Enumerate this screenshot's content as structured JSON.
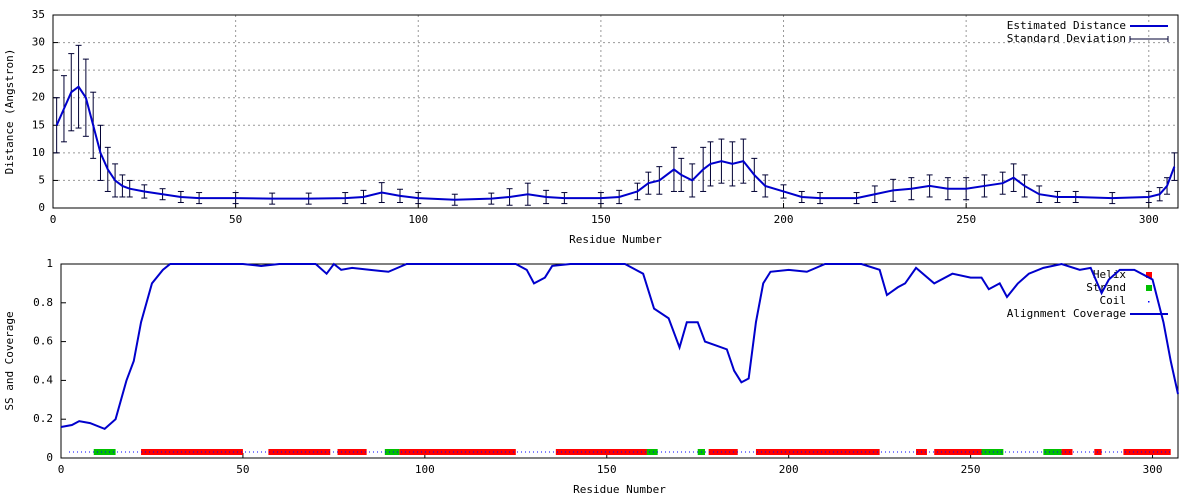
{
  "chart_data": [
    {
      "type": "line",
      "xlabel": "Residue Number",
      "ylabel": "Distance (Angstron)",
      "xlim": [
        0,
        308
      ],
      "ylim": [
        0,
        35
      ],
      "xticks": [
        0,
        50,
        100,
        150,
        200,
        250,
        300
      ],
      "yticks": [
        0,
        5,
        10,
        15,
        20,
        25,
        30,
        35
      ],
      "grid": true,
      "legend": "upper-right",
      "x": [
        1,
        3,
        5,
        7,
        9,
        11,
        13,
        15,
        17,
        19,
        21,
        25,
        30,
        35,
        40,
        50,
        60,
        70,
        80,
        85,
        90,
        95,
        100,
        110,
        120,
        125,
        130,
        135,
        140,
        150,
        155,
        160,
        163,
        166,
        170,
        172,
        175,
        178,
        180,
        183,
        186,
        189,
        192,
        195,
        200,
        205,
        210,
        220,
        225,
        230,
        235,
        240,
        245,
        250,
        255,
        260,
        263,
        266,
        270,
        275,
        280,
        290,
        300,
        303,
        305,
        307
      ],
      "series": [
        {
          "name": "Estimated Distance",
          "color": "#0000cc",
          "error_name": "Standard Deviation",
          "error_color": "#000033",
          "values": [
            15,
            18,
            21,
            22,
            20,
            15,
            10,
            7,
            5,
            4,
            3.5,
            3,
            2.5,
            2,
            1.8,
            1.8,
            1.7,
            1.7,
            1.8,
            2,
            2.8,
            2.2,
            1.8,
            1.5,
            1.7,
            2,
            2.5,
            2,
            1.8,
            1.8,
            2,
            3,
            4.5,
            5,
            7,
            6,
            5,
            7,
            8,
            8.5,
            8,
            8.5,
            6,
            4,
            3,
            2,
            1.8,
            1.8,
            2.5,
            3.2,
            3.5,
            4,
            3.5,
            3.5,
            4,
            4.5,
            5.5,
            4,
            2.5,
            2,
            2,
            1.8,
            2,
            2.5,
            4,
            7.5
          ],
          "errors": [
            5,
            6,
            7,
            7.5,
            7,
            6,
            5,
            4,
            3,
            2,
            1.5,
            1.2,
            1,
            1,
            1,
            1,
            1,
            1,
            1,
            1.2,
            1.8,
            1.2,
            1,
            1,
            1,
            1.5,
            2,
            1.2,
            1,
            1,
            1.2,
            1.5,
            2,
            2.5,
            4,
            3,
            3,
            4,
            4,
            4,
            4,
            4,
            3,
            2,
            1.2,
            1,
            1,
            1,
            1.5,
            2,
            2,
            2,
            2,
            2,
            2,
            2,
            2.5,
            2,
            1.5,
            1,
            1,
            1,
            1,
            1.2,
            1.5,
            2.5
          ]
        }
      ]
    },
    {
      "type": "line",
      "xlabel": "Residue Number",
      "ylabel": "SS and Coverage",
      "xlim": [
        0,
        307
      ],
      "ylim": [
        0,
        1
      ],
      "xticks": [
        0,
        50,
        100,
        150,
        200,
        250,
        300
      ],
      "yticks": [
        0,
        0.2,
        0.4,
        0.6,
        0.8,
        1
      ],
      "grid": false,
      "legend": "upper-right",
      "x": [
        0,
        3,
        5,
        8,
        12,
        15,
        18,
        20,
        22,
        25,
        28,
        30,
        40,
        50,
        55,
        60,
        70,
        73,
        75,
        77,
        80,
        85,
        90,
        95,
        100,
        125,
        128,
        130,
        133,
        135,
        140,
        155,
        160,
        163,
        167,
        170,
        172,
        175,
        177,
        180,
        183,
        185,
        187,
        189,
        191,
        193,
        195,
        200,
        205,
        210,
        220,
        225,
        227,
        230,
        232,
        235,
        240,
        245,
        250,
        253,
        255,
        258,
        260,
        263,
        266,
        270,
        275,
        280,
        283,
        286,
        288,
        291,
        295,
        300,
        303,
        305,
        307
      ],
      "series": [
        {
          "name": "Helix",
          "color": "#ff0000",
          "segments": [
            [
              22,
              50
            ],
            [
              57,
              74
            ],
            [
              76,
              84
            ],
            [
              93,
              125
            ],
            [
              136,
              162
            ],
            [
              178,
              186
            ],
            [
              191,
              225
            ],
            [
              235,
              238
            ],
            [
              240,
              256
            ],
            [
              275,
              278
            ],
            [
              284,
              286
            ],
            [
              292,
              305
            ]
          ]
        },
        {
          "name": "Strand",
          "color": "#00c000",
          "segments": [
            [
              9,
              15
            ],
            [
              89,
              93
            ],
            [
              161,
              164
            ],
            [
              175,
              177
            ],
            [
              253,
              259
            ],
            [
              270,
              275
            ]
          ]
        },
        {
          "name": "Coil",
          "color": "#0000ff"
        },
        {
          "name": "Alignment Coverage",
          "color": "#0000cc",
          "values": [
            0.16,
            0.17,
            0.19,
            0.18,
            0.15,
            0.2,
            0.4,
            0.5,
            0.7,
            0.9,
            0.97,
            1,
            1,
            1,
            0.99,
            1,
            1,
            0.95,
            1,
            0.97,
            0.98,
            0.97,
            0.96,
            1,
            1,
            1,
            0.97,
            0.9,
            0.93,
            0.99,
            1,
            1,
            0.95,
            0.77,
            0.72,
            0.57,
            0.7,
            0.7,
            0.6,
            0.58,
            0.56,
            0.45,
            0.39,
            0.41,
            0.7,
            0.9,
            0.96,
            0.97,
            0.96,
            1,
            1,
            0.97,
            0.84,
            0.88,
            0.9,
            0.98,
            0.9,
            0.95,
            0.93,
            0.93,
            0.87,
            0.9,
            0.83,
            0.9,
            0.95,
            0.98,
            1,
            0.97,
            0.98,
            0.85,
            0.92,
            0.97,
            0.97,
            0.92,
            0.7,
            0.5,
            0.33
          ]
        }
      ]
    }
  ]
}
